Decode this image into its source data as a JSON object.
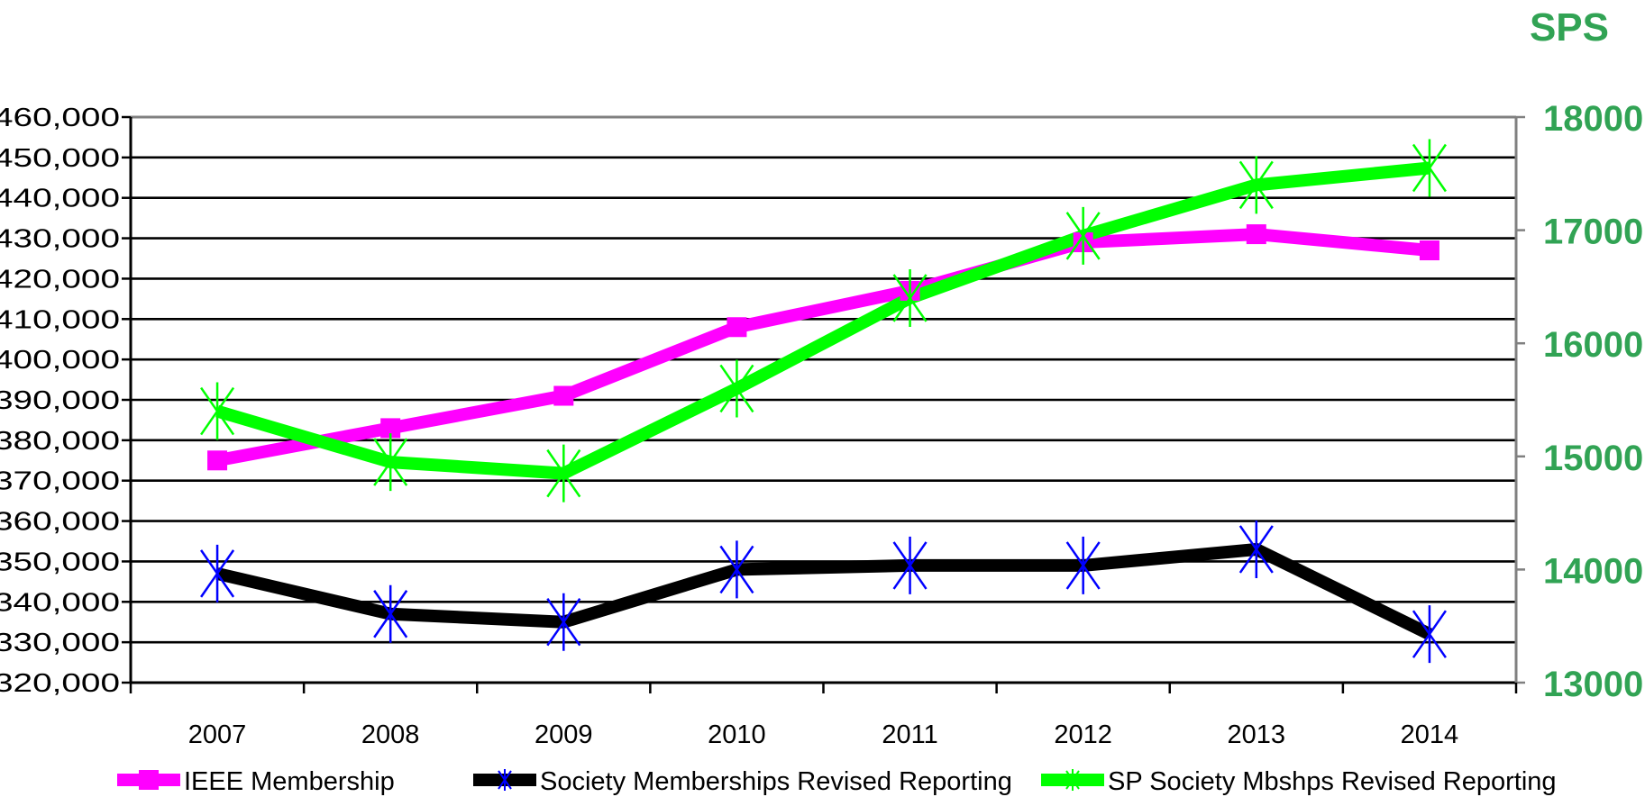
{
  "chart_data": {
    "type": "line",
    "categories": [
      "2007",
      "2008",
      "2009",
      "2010",
      "2011",
      "2012",
      "2013",
      "2014"
    ],
    "y_left": {
      "range": [
        320000,
        460000
      ],
      "ticks": [
        320000,
        330000,
        340000,
        350000,
        360000,
        370000,
        380000,
        390000,
        400000,
        410000,
        420000,
        430000,
        440000,
        450000,
        460000
      ],
      "tick_labels": [
        "320,000",
        "330,000",
        "340,000",
        "350,000",
        "360,000",
        "370,000",
        "380,000",
        "390,000",
        "400,000",
        "410,000",
        "420,000",
        "430,000",
        "440,000",
        "450,000",
        "460,000"
      ]
    },
    "y_right": {
      "title": "SPS",
      "range": [
        13000,
        18000
      ],
      "ticks": [
        13000,
        14000,
        15000,
        16000,
        17000,
        18000
      ],
      "tick_labels": [
        "13000",
        "14000",
        "15000",
        "16000",
        "17000",
        "18000"
      ]
    },
    "grid": true,
    "legend_position": "bottom",
    "series": [
      {
        "name": "IEEE Membership",
        "axis": "left",
        "color": "#ff00ff",
        "marker": "square",
        "marker_color": "#ff00ff",
        "values": [
          375000,
          383000,
          391000,
          408000,
          417000,
          429000,
          431000,
          427000
        ]
      },
      {
        "name": "Society Memberships Revised Reporting",
        "axis": "left",
        "color": "#000000",
        "marker": "asterisk",
        "marker_color": "#0000ff",
        "values": [
          347000,
          337000,
          335000,
          348000,
          349000,
          349000,
          353000,
          332000
        ]
      },
      {
        "name": "SP Society Mbshps Revised Reporting",
        "axis": "right",
        "color": "#00ff00",
        "marker": "asterisk",
        "marker_color": "#00ff00",
        "values": [
          15400,
          14950,
          14850,
          15600,
          16400,
          16950,
          17400,
          17550
        ]
      }
    ]
  }
}
